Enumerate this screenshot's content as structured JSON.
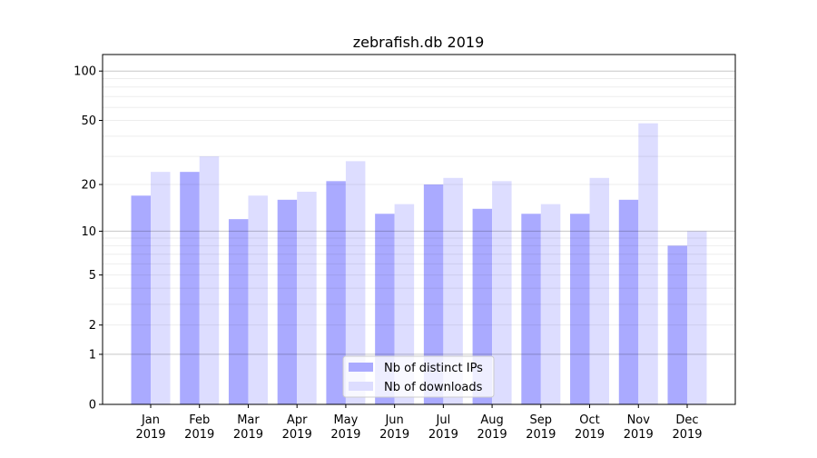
{
  "chart_data": {
    "type": "bar",
    "title": "zebrafish.db 2019",
    "xlabel": "",
    "ylabel": "",
    "yscale": "log(1+y)",
    "ylim": [
      0,
      126
    ],
    "yticks": [
      0,
      1,
      2,
      5,
      10,
      20,
      50,
      100
    ],
    "grid": true,
    "legend_placement": "lower center",
    "categories": [
      "Jan\n2019",
      "Feb\n2019",
      "Mar\n2019",
      "Apr\n2019",
      "May\n2019",
      "Jun\n2019",
      "Jul\n2019",
      "Aug\n2019",
      "Sep\n2019",
      "Oct\n2019",
      "Nov\n2019",
      "Dec\n2019"
    ],
    "series": [
      {
        "name": "Nb of distinct IPs",
        "color": "#aaaaff",
        "values": [
          17,
          24,
          12,
          16,
          21,
          13,
          20,
          14,
          13,
          13,
          16,
          8
        ]
      },
      {
        "name": "Nb of downloads",
        "color": "#ddddff",
        "values": [
          24,
          30,
          17,
          18,
          28,
          15,
          22,
          21,
          15,
          22,
          48,
          10
        ]
      }
    ]
  }
}
